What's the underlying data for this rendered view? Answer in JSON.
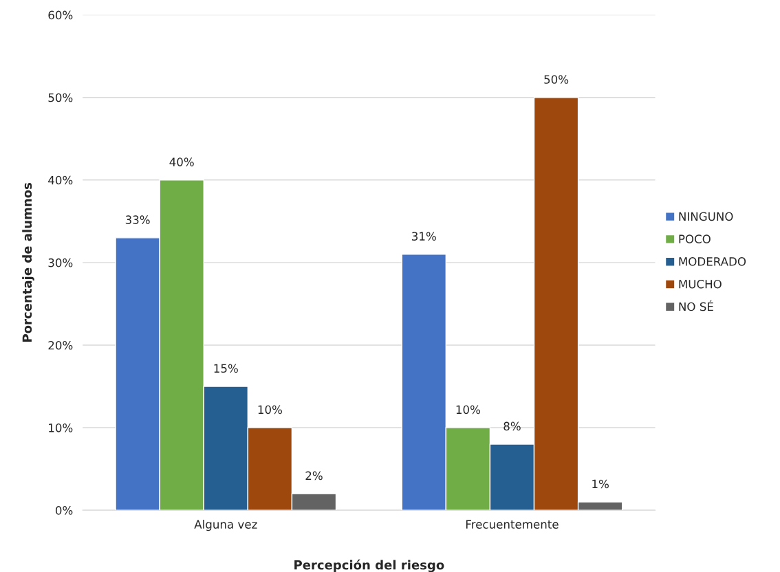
{
  "chart_data": {
    "type": "bar",
    "xlabel": "Percepción del riesgo",
    "ylabel": "Porcentaje de alumnos",
    "categories": [
      "Alguna vez",
      "Frecuentemente"
    ],
    "series": [
      {
        "name": "NINGUNO",
        "color": "#4472c4",
        "values": [
          33,
          31
        ],
        "value_labels": [
          "33%",
          "31%"
        ]
      },
      {
        "name": "POCO",
        "color": "#70ad47",
        "values": [
          40,
          10
        ],
        "value_labels": [
          "40%",
          "10%"
        ]
      },
      {
        "name": "MODERADO",
        "color": "#255e91",
        "values": [
          15,
          8
        ],
        "value_labels": [
          "15%",
          "8%"
        ]
      },
      {
        "name": "MUCHO",
        "color": "#9e480e",
        "values": [
          10,
          50
        ],
        "value_labels": [
          "10%",
          "50%"
        ]
      },
      {
        "name": "NO SÉ",
        "color": "#636363",
        "values": [
          2,
          1
        ],
        "value_labels": [
          "2%",
          "1%"
        ]
      }
    ],
    "ylim": [
      0,
      60
    ],
    "yticks": [
      {
        "value": 0,
        "label": "0%"
      },
      {
        "value": 10,
        "label": "10%"
      },
      {
        "value": 20,
        "label": "20%"
      },
      {
        "value": 30,
        "label": "30%"
      },
      {
        "value": 40,
        "label": "40%"
      },
      {
        "value": 50,
        "label": "50%"
      },
      {
        "value": 60,
        "label": "60%"
      }
    ],
    "grid": "y",
    "legend": "right"
  }
}
